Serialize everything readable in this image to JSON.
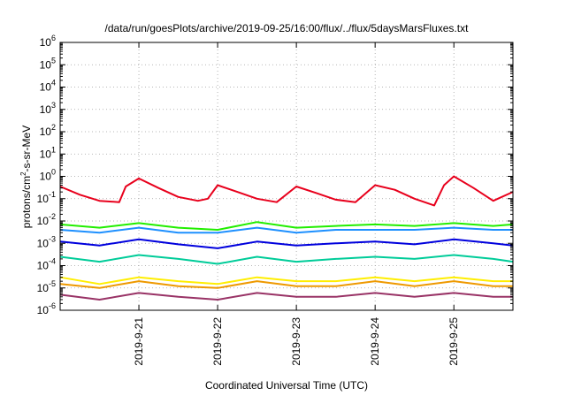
{
  "chart_data": {
    "type": "line",
    "title": "/data/run/goesPlots/archive/2019-09-25/16:00/flux/../flux/5daysMarsFluxes.txt",
    "xlabel": "Coordinated Universal Time (UTC)",
    "ylabel_main": "protons/cm",
    "ylabel_sup": "2",
    "ylabel_rest": "-s-sr-MeV",
    "y_scale": "log",
    "ylim": [
      1e-06,
      1000000.0
    ],
    "xlim": [
      "2019-09-20 00:00",
      "2019-09-25 18:00"
    ],
    "y_ticks": [
      {
        "base": "10",
        "exp": "-6",
        "value": 1e-06
      },
      {
        "base": "10",
        "exp": "-5",
        "value": 1e-05
      },
      {
        "base": "10",
        "exp": "-4",
        "value": 0.0001
      },
      {
        "base": "10",
        "exp": "-3",
        "value": 0.001
      },
      {
        "base": "10",
        "exp": "-2",
        "value": 0.01
      },
      {
        "base": "10",
        "exp": "-1",
        "value": 0.1
      },
      {
        "base": "10",
        "exp": "0",
        "value": 1
      },
      {
        "base": "10",
        "exp": "1",
        "value": 10
      },
      {
        "base": "10",
        "exp": "2",
        "value": 100
      },
      {
        "base": "10",
        "exp": "3",
        "value": 1000
      },
      {
        "base": "10",
        "exp": "4",
        "value": 10000
      },
      {
        "base": "10",
        "exp": "5",
        "value": 100000
      },
      {
        "base": "10",
        "exp": "6",
        "value": 1000000
      }
    ],
    "x_ticks": [
      {
        "label": "2019-9-21",
        "value": "2019-09-21 00:00"
      },
      {
        "label": "2019-9-22",
        "value": "2019-09-22 00:00"
      },
      {
        "label": "2019-9-23",
        "value": "2019-09-23 00:00"
      },
      {
        "label": "2019-9-24",
        "value": "2019-09-24 00:00"
      },
      {
        "label": "2019-9-25",
        "value": "2019-09-25 00:00"
      }
    ],
    "grid": true,
    "legend": "none",
    "series": [
      {
        "color": "#e8001c",
        "x": [
          "2019-09-20 00:00",
          "2019-09-20 06:00",
          "2019-09-20 12:00",
          "2019-09-20 18:00",
          "2019-09-20 20:00",
          "2019-09-21 00:00",
          "2019-09-21 06:00",
          "2019-09-21 12:00",
          "2019-09-21 18:00",
          "2019-09-21 21:00",
          "2019-09-22 00:00",
          "2019-09-22 06:00",
          "2019-09-22 12:00",
          "2019-09-22 18:00",
          "2019-09-23 00:00",
          "2019-09-23 06:00",
          "2019-09-23 12:00",
          "2019-09-23 18:00",
          "2019-09-24 00:00",
          "2019-09-24 06:00",
          "2019-09-24 12:00",
          "2019-09-24 18:00",
          "2019-09-24 21:00",
          "2019-09-25 00:00",
          "2019-09-25 06:00",
          "2019-09-25 12:00",
          "2019-09-25 18:00"
        ],
        "y": [
          0.35,
          0.15,
          0.08,
          0.07,
          0.35,
          0.8,
          0.3,
          0.12,
          0.08,
          0.1,
          0.4,
          0.2,
          0.1,
          0.07,
          0.35,
          0.18,
          0.09,
          0.07,
          0.4,
          0.25,
          0.1,
          0.05,
          0.4,
          1.0,
          0.3,
          0.08,
          0.2
        ]
      },
      {
        "color": "#22ee00",
        "x": [
          "2019-09-20 00:00",
          "2019-09-20 12:00",
          "2019-09-21 00:00",
          "2019-09-21 12:00",
          "2019-09-22 00:00",
          "2019-09-22 12:00",
          "2019-09-23 00:00",
          "2019-09-23 12:00",
          "2019-09-24 00:00",
          "2019-09-24 12:00",
          "2019-09-25 00:00",
          "2019-09-25 12:00",
          "2019-09-25 18:00"
        ],
        "y": [
          0.007,
          0.005,
          0.008,
          0.005,
          0.004,
          0.009,
          0.005,
          0.006,
          0.007,
          0.006,
          0.008,
          0.006,
          0.007
        ]
      },
      {
        "color": "#1e90ff",
        "x": [
          "2019-09-20 00:00",
          "2019-09-20 12:00",
          "2019-09-21 00:00",
          "2019-09-21 12:00",
          "2019-09-22 00:00",
          "2019-09-22 12:00",
          "2019-09-23 00:00",
          "2019-09-23 12:00",
          "2019-09-24 00:00",
          "2019-09-24 12:00",
          "2019-09-25 00:00",
          "2019-09-25 12:00",
          "2019-09-25 18:00"
        ],
        "y": [
          0.004,
          0.003,
          0.005,
          0.003,
          0.003,
          0.005,
          0.003,
          0.004,
          0.004,
          0.004,
          0.005,
          0.004,
          0.004
        ]
      },
      {
        "color": "#0000dd",
        "x": [
          "2019-09-20 00:00",
          "2019-09-20 12:00",
          "2019-09-21 00:00",
          "2019-09-21 12:00",
          "2019-09-22 00:00",
          "2019-09-22 12:00",
          "2019-09-23 00:00",
          "2019-09-23 12:00",
          "2019-09-24 00:00",
          "2019-09-24 12:00",
          "2019-09-25 00:00",
          "2019-09-25 12:00",
          "2019-09-25 18:00"
        ],
        "y": [
          0.0012,
          0.0008,
          0.0015,
          0.0009,
          0.0006,
          0.0012,
          0.0008,
          0.001,
          0.0012,
          0.0009,
          0.0015,
          0.001,
          0.0008
        ]
      },
      {
        "color": "#00cc99",
        "x": [
          "2019-09-20 00:00",
          "2019-09-20 12:00",
          "2019-09-21 00:00",
          "2019-09-21 12:00",
          "2019-09-22 00:00",
          "2019-09-22 12:00",
          "2019-09-23 00:00",
          "2019-09-23 12:00",
          "2019-09-24 00:00",
          "2019-09-24 12:00",
          "2019-09-25 00:00",
          "2019-09-25 12:00",
          "2019-09-25 18:00"
        ],
        "y": [
          0.00025,
          0.00015,
          0.0003,
          0.0002,
          0.00012,
          0.00025,
          0.00015,
          0.0002,
          0.00025,
          0.0002,
          0.0003,
          0.0002,
          0.00015
        ]
      },
      {
        "color": "#ffee00",
        "x": [
          "2019-09-20 00:00",
          "2019-09-20 12:00",
          "2019-09-21 00:00",
          "2019-09-21 12:00",
          "2019-09-22 00:00",
          "2019-09-22 12:00",
          "2019-09-23 00:00",
          "2019-09-23 12:00",
          "2019-09-24 00:00",
          "2019-09-24 12:00",
          "2019-09-25 00:00",
          "2019-09-25 12:00",
          "2019-09-25 18:00"
        ],
        "y": [
          3e-05,
          1.5e-05,
          3e-05,
          2e-05,
          1.5e-05,
          3e-05,
          2e-05,
          2e-05,
          3e-05,
          2e-05,
          3e-05,
          2e-05,
          2e-05
        ]
      },
      {
        "color": "#ee9900",
        "x": [
          "2019-09-20 00:00",
          "2019-09-20 12:00",
          "2019-09-21 00:00",
          "2019-09-21 12:00",
          "2019-09-22 00:00",
          "2019-09-22 12:00",
          "2019-09-23 00:00",
          "2019-09-23 12:00",
          "2019-09-24 00:00",
          "2019-09-24 12:00",
          "2019-09-25 00:00",
          "2019-09-25 12:00",
          "2019-09-25 18:00"
        ],
        "y": [
          1.5e-05,
          1e-05,
          2e-05,
          1.2e-05,
          1e-05,
          2e-05,
          1.2e-05,
          1.2e-05,
          2e-05,
          1.2e-05,
          2e-05,
          1.2e-05,
          1.2e-05
        ]
      },
      {
        "color": "#993366",
        "x": [
          "2019-09-20 00:00",
          "2019-09-20 12:00",
          "2019-09-21 00:00",
          "2019-09-21 12:00",
          "2019-09-22 00:00",
          "2019-09-22 12:00",
          "2019-09-23 00:00",
          "2019-09-23 12:00",
          "2019-09-24 00:00",
          "2019-09-24 12:00",
          "2019-09-25 00:00",
          "2019-09-25 12:00",
          "2019-09-25 18:00"
        ],
        "y": [
          5e-06,
          3e-06,
          6e-06,
          4e-06,
          3e-06,
          6e-06,
          4e-06,
          4e-06,
          6e-06,
          4e-06,
          6e-06,
          4e-06,
          4e-06
        ]
      }
    ]
  }
}
